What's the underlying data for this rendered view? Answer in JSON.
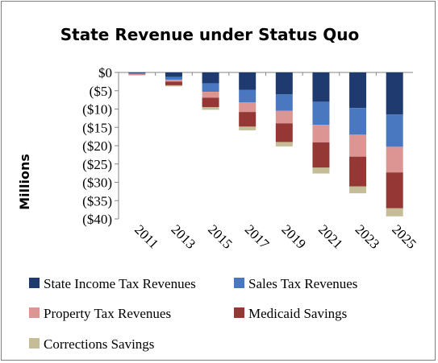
{
  "chart_data": {
    "type": "bar",
    "stacked": true,
    "title": "State Revenue under Status Quo",
    "ylabel": "Millions",
    "xlabel": "",
    "ylim": [
      -40,
      0
    ],
    "yticks": [
      0,
      -5,
      -10,
      -15,
      -20,
      -25,
      -30,
      -35,
      -40
    ],
    "ytick_labels": [
      "$0",
      "($5)",
      "($10)",
      "($15)",
      "($20)",
      "($25)",
      "($30)",
      "($35)",
      "($40)"
    ],
    "categories": [
      "2011",
      "2013",
      "2015",
      "2017",
      "2019",
      "2021",
      "2023",
      "2025"
    ],
    "grid": false,
    "legend_position": "bottom",
    "series": [
      {
        "name": "State Income Tax Revenues",
        "color": "#1f3a6e",
        "values": [
          -0.2,
          -1.2,
          -3.0,
          -4.8,
          -6.0,
          -8.0,
          -9.7,
          -11.5
        ]
      },
      {
        "name": "Sales Tax Revenues",
        "color": "#4a78c0",
        "values": [
          -0.2,
          -0.8,
          -2.3,
          -3.4,
          -4.5,
          -6.3,
          -7.3,
          -8.8
        ]
      },
      {
        "name": "Property Tax Revenues",
        "color": "#dc9593",
        "values": [
          -0.2,
          -0.5,
          -1.6,
          -2.6,
          -3.4,
          -4.8,
          -6.0,
          -7.0
        ]
      },
      {
        "name": "Medicaid Savings",
        "color": "#953735",
        "values": [
          -0.1,
          -1.0,
          -2.6,
          -4.0,
          -5.1,
          -6.9,
          -8.1,
          -9.8
        ]
      },
      {
        "name": "Corrections Savings",
        "color": "#c4bd97",
        "values": [
          -0.1,
          -0.3,
          -0.7,
          -1.0,
          -1.2,
          -1.6,
          -1.9,
          -2.2
        ]
      }
    ]
  }
}
